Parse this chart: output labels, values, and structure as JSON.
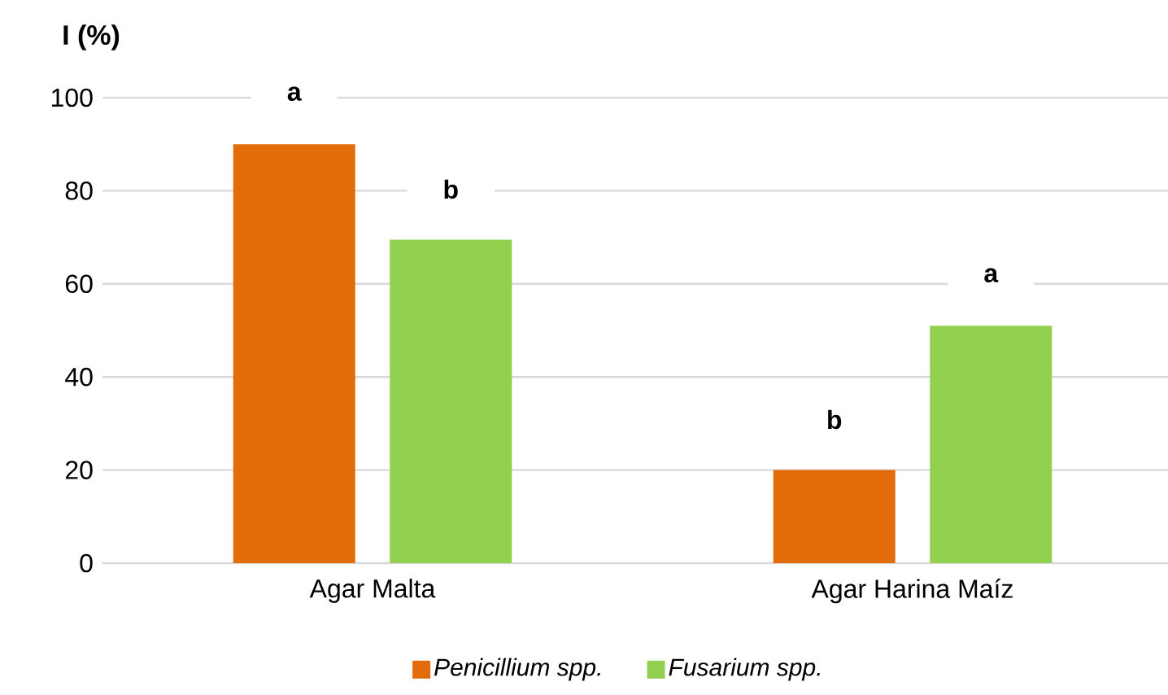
{
  "chart_data": {
    "type": "bar",
    "ylabel": "I (%)",
    "categories": [
      "Agar Malta",
      "Agar Harina Maíz"
    ],
    "series": [
      {
        "name": "Penicillium spp.",
        "color": "#e36c0a",
        "values": [
          90,
          20
        ],
        "value_labels": [
          "a",
          "b"
        ]
      },
      {
        "name": "Fusarium spp.",
        "color": "#92d050",
        "values": [
          69.5,
          51
        ],
        "value_labels": [
          "b",
          "a"
        ]
      }
    ],
    "ylim": [
      0,
      100
    ],
    "yticks": [
      0,
      20,
      40,
      60,
      80,
      100
    ],
    "grid": "y",
    "legend": "bottom"
  }
}
